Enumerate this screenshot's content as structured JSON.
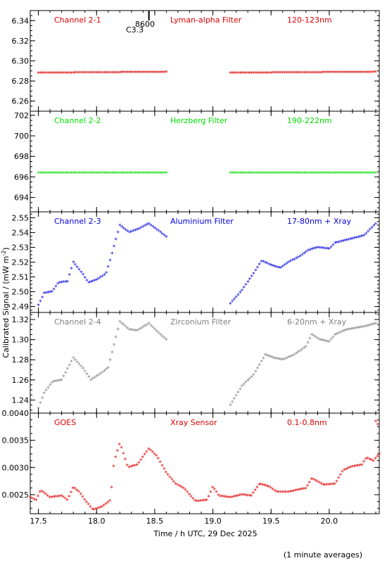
{
  "figure": {
    "ylabel": "Calibrated Signal / (mW m",
    "ylabel_sup": "-2",
    "ylabel_end": ")",
    "xlabel": "Time / h UTC, 29 Dec 2025",
    "footer": "(1 minute averages)",
    "marker_label_1": "8600",
    "marker_label_2": "C3.3",
    "marker_x": 18.45
  },
  "chart_data": [
    {
      "type": "scatter",
      "channel": "Channel 2-1",
      "filter": "Lyman-alpha Filter",
      "band": "120-123nm",
      "color": "#dd0000",
      "xlim": [
        17.43,
        20.43
      ],
      "ylim": [
        6.25,
        6.35
      ],
      "yticks": [
        6.26,
        6.28,
        6.3,
        6.32,
        6.34
      ],
      "segments": [
        {
          "x0": 17.5,
          "x1": 18.6,
          "knots": [
            [
              17.5,
              6.288
            ],
            [
              18.6,
              6.289
            ]
          ]
        },
        {
          "x0": 19.15,
          "x1": 20.4,
          "knots": [
            [
              19.15,
              6.288
            ],
            [
              20.4,
              6.289
            ]
          ]
        }
      ]
    },
    {
      "type": "scatter",
      "channel": "Channel 2-2",
      "filter": "Herzberg Filter",
      "band": "190-222nm",
      "color": "#00dd00",
      "xlim": [
        17.43,
        20.43
      ],
      "ylim": [
        692.6,
        702.4
      ],
      "yticks": [
        694,
        696,
        698,
        700,
        702
      ],
      "segments": [
        {
          "x0": 17.5,
          "x1": 18.6,
          "knots": [
            [
              17.5,
              696.4
            ],
            [
              18.6,
              696.4
            ]
          ]
        },
        {
          "x0": 19.15,
          "x1": 20.4,
          "knots": [
            [
              19.15,
              696.4
            ],
            [
              20.4,
              696.4
            ]
          ]
        }
      ]
    },
    {
      "type": "scatter",
      "channel": "Channel 2-3",
      "filter": "Aluminium Filter",
      "band": "17-80nm + Xray",
      "color": "#0000dd",
      "xlim": [
        17.43,
        20.43
      ],
      "ylim": [
        2.486,
        2.554
      ],
      "yticks": [
        2.49,
        2.5,
        2.51,
        2.52,
        2.53,
        2.54,
        2.55
      ],
      "segments": [
        {
          "x0": 17.5,
          "x1": 18.6,
          "knots": [
            [
              17.5,
              2.491
            ],
            [
              17.55,
              2.499
            ],
            [
              17.62,
              2.5
            ],
            [
              17.67,
              2.506
            ],
            [
              17.75,
              2.507
            ],
            [
              17.8,
              2.52
            ],
            [
              17.88,
              2.512
            ],
            [
              17.93,
              2.506
            ],
            [
              18.0,
              2.508
            ],
            [
              18.08,
              2.512
            ],
            [
              18.12,
              2.522
            ],
            [
              18.2,
              2.545
            ],
            [
              18.28,
              2.54
            ],
            [
              18.35,
              2.542
            ],
            [
              18.45,
              2.546
            ],
            [
              18.52,
              2.542
            ],
            [
              18.6,
              2.537
            ]
          ]
        },
        {
          "x0": 19.15,
          "x1": 20.4,
          "knots": [
            [
              19.15,
              2.492
            ],
            [
              19.25,
              2.501
            ],
            [
              19.33,
              2.51
            ],
            [
              19.42,
              2.521
            ],
            [
              19.5,
              2.518
            ],
            [
              19.58,
              2.516
            ],
            [
              19.65,
              2.52
            ],
            [
              19.75,
              2.524
            ],
            [
              19.82,
              2.528
            ],
            [
              19.9,
              2.53
            ],
            [
              20.0,
              2.529
            ],
            [
              20.05,
              2.533
            ],
            [
              20.15,
              2.535
            ],
            [
              20.3,
              2.538
            ],
            [
              20.4,
              2.546
            ]
          ]
        }
      ]
    },
    {
      "type": "scatter",
      "channel": "Channel 2-4",
      "filter": "Zirconium Filter",
      "band": "6-20nm + Xray",
      "color": "#808080",
      "xlim": [
        17.43,
        20.43
      ],
      "ylim": [
        1.227,
        1.327
      ],
      "yticks": [
        1.24,
        1.26,
        1.28,
        1.3,
        1.32
      ],
      "segments": [
        {
          "x0": 17.5,
          "x1": 18.6,
          "knots": [
            [
              17.5,
              1.232
            ],
            [
              17.55,
              1.247
            ],
            [
              17.62,
              1.258
            ],
            [
              17.7,
              1.26
            ],
            [
              17.8,
              1.282
            ],
            [
              17.88,
              1.272
            ],
            [
              17.95,
              1.26
            ],
            [
              18.02,
              1.265
            ],
            [
              18.1,
              1.272
            ],
            [
              18.15,
              1.295
            ],
            [
              18.2,
              1.318
            ],
            [
              18.28,
              1.31
            ],
            [
              18.35,
              1.309
            ],
            [
              18.45,
              1.316
            ],
            [
              18.52,
              1.308
            ],
            [
              18.6,
              1.3
            ]
          ]
        },
        {
          "x0": 19.15,
          "x1": 20.4,
          "knots": [
            [
              19.15,
              1.235
            ],
            [
              19.25,
              1.254
            ],
            [
              19.35,
              1.265
            ],
            [
              19.45,
              1.285
            ],
            [
              19.52,
              1.282
            ],
            [
              19.6,
              1.28
            ],
            [
              19.7,
              1.285
            ],
            [
              19.8,
              1.293
            ],
            [
              19.85,
              1.305
            ],
            [
              19.92,
              1.3
            ],
            [
              20.0,
              1.298
            ],
            [
              20.05,
              1.305
            ],
            [
              20.15,
              1.31
            ],
            [
              20.3,
              1.313
            ],
            [
              20.4,
              1.316
            ]
          ]
        }
      ]
    },
    {
      "type": "scatter",
      "channel": "GOES",
      "filter": "Xray Sensor",
      "band": "0.1-0.8nm",
      "color": "#dd0000",
      "xlim": [
        17.43,
        20.43
      ],
      "ylim": [
        0.00215,
        0.004
      ],
      "yticks": [
        0.0025,
        0.003,
        0.0035,
        0.004
      ],
      "segments": [
        {
          "x0": 17.43,
          "x1": 20.43,
          "knots": [
            [
              17.43,
              0.00245
            ],
            [
              17.48,
              0.0024
            ],
            [
              17.52,
              0.00258
            ],
            [
              17.6,
              0.00245
            ],
            [
              17.7,
              0.00248
            ],
            [
              17.75,
              0.0024
            ],
            [
              17.8,
              0.00264
            ],
            [
              17.85,
              0.00255
            ],
            [
              17.9,
              0.0024
            ],
            [
              17.97,
              0.00222
            ],
            [
              18.05,
              0.00228
            ],
            [
              18.12,
              0.0024
            ],
            [
              18.15,
              0.0031
            ],
            [
              18.2,
              0.00345
            ],
            [
              18.27,
              0.003
            ],
            [
              18.35,
              0.00305
            ],
            [
              18.45,
              0.00335
            ],
            [
              18.52,
              0.0032
            ],
            [
              18.6,
              0.0029
            ],
            [
              18.68,
              0.0027
            ],
            [
              18.75,
              0.00262
            ],
            [
              18.85,
              0.00238
            ],
            [
              18.95,
              0.0024
            ],
            [
              19.0,
              0.00265
            ],
            [
              19.05,
              0.00248
            ],
            [
              19.15,
              0.00245
            ],
            [
              19.25,
              0.0025
            ],
            [
              19.33,
              0.00248
            ],
            [
              19.4,
              0.0027
            ],
            [
              19.48,
              0.00265
            ],
            [
              19.55,
              0.00255
            ],
            [
              19.65,
              0.00255
            ],
            [
              19.75,
              0.0026
            ],
            [
              19.8,
              0.00262
            ],
            [
              19.85,
              0.0028
            ],
            [
              19.95,
              0.00268
            ],
            [
              20.05,
              0.0027
            ],
            [
              20.12,
              0.00295
            ],
            [
              20.2,
              0.00302
            ],
            [
              20.28,
              0.00305
            ],
            [
              20.32,
              0.00318
            ],
            [
              20.38,
              0.00312
            ],
            [
              20.43,
              0.00325
            ]
          ]
        },
        {
          "x0": 20.4,
          "x1": 20.43,
          "knots": [
            [
              20.4,
              0.00385
            ],
            [
              20.43,
              0.00375
            ]
          ]
        }
      ]
    }
  ],
  "xaxis": {
    "ticks": [
      17.5,
      18.0,
      18.5,
      19.0,
      19.5,
      20.0
    ],
    "labels": [
      "17.5",
      "18.0",
      "18.5",
      "19.0",
      "19.5",
      "20.0"
    ]
  }
}
